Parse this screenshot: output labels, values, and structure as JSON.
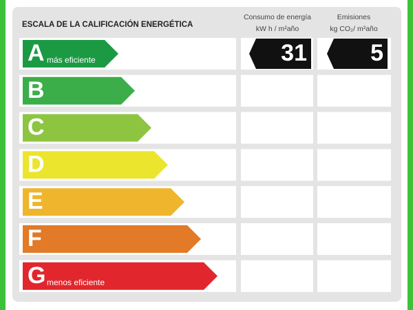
{
  "header": {
    "title": "ESCALA DE LA CALIFICACIÓN ENERGÉTICA",
    "consumption": {
      "label": "Consumo de energía",
      "unit": "kW h / m²año"
    },
    "emissions": {
      "label": "Emisiones",
      "unit": "kg CO₂/ m²año"
    }
  },
  "rows": [
    {
      "letter": "A",
      "label": "más eficiente",
      "color": "#1b9a43",
      "consumption": 31,
      "emissions": 5
    },
    {
      "letter": "B",
      "color": "#3bae49"
    },
    {
      "letter": "C",
      "color": "#8dc541"
    },
    {
      "letter": "D",
      "color": "#ece52d"
    },
    {
      "letter": "E",
      "color": "#efb52c"
    },
    {
      "letter": "F",
      "color": "#e27a27"
    },
    {
      "letter": "G",
      "label": "menos eficiente",
      "color": "#e1272d"
    }
  ]
}
